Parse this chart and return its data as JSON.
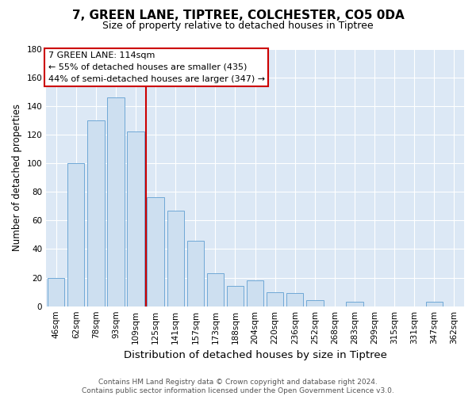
{
  "title": "7, GREEN LANE, TIPTREE, COLCHESTER, CO5 0DA",
  "subtitle": "Size of property relative to detached houses in Tiptree",
  "xlabel": "Distribution of detached houses by size in Tiptree",
  "ylabel": "Number of detached properties",
  "categories": [
    "46sqm",
    "62sqm",
    "78sqm",
    "93sqm",
    "109sqm",
    "125sqm",
    "141sqm",
    "157sqm",
    "173sqm",
    "188sqm",
    "204sqm",
    "220sqm",
    "236sqm",
    "252sqm",
    "268sqm",
    "283sqm",
    "299sqm",
    "315sqm",
    "331sqm",
    "347sqm",
    "362sqm"
  ],
  "values": [
    20,
    100,
    130,
    146,
    122,
    76,
    67,
    46,
    23,
    14,
    18,
    10,
    9,
    4,
    0,
    3,
    0,
    0,
    0,
    3,
    0
  ],
  "bar_color": "#cddff0",
  "bar_edge_color": "#6fa8d6",
  "vline_x": 4.5,
  "vline_color": "#cc0000",
  "annotation_line1": "7 GREEN LANE: 114sqm",
  "annotation_line2": "← 55% of detached houses are smaller (435)",
  "annotation_line3": "44% of semi-detached houses are larger (347) →",
  "annotation_box_color": "#cc0000",
  "ylim": [
    0,
    180
  ],
  "yticks": [
    0,
    20,
    40,
    60,
    80,
    100,
    120,
    140,
    160,
    180
  ],
  "background_color": "#ffffff",
  "plot_background_color": "#dce8f5",
  "footer_line1": "Contains HM Land Registry data © Crown copyright and database right 2024.",
  "footer_line2": "Contains public sector information licensed under the Open Government Licence v3.0.",
  "title_fontsize": 11,
  "subtitle_fontsize": 9,
  "xlabel_fontsize": 9.5,
  "ylabel_fontsize": 8.5,
  "tick_fontsize": 7.5,
  "annotation_fontsize": 8,
  "footer_fontsize": 6.5
}
